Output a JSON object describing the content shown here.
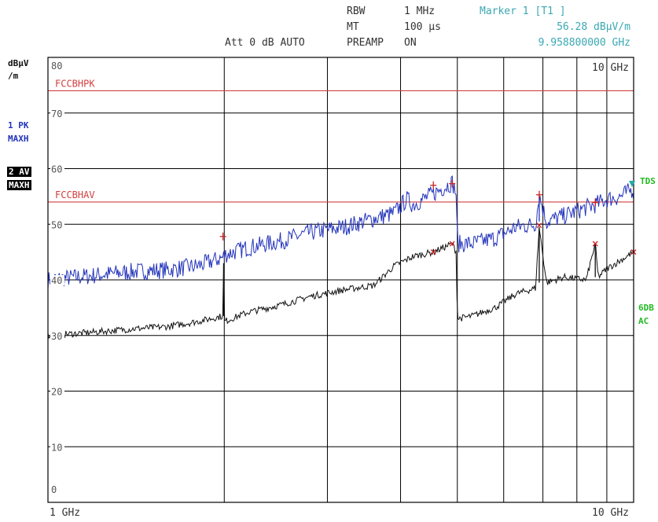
{
  "header": {
    "rbw_label": "RBW",
    "rbw_value": "1 MHz",
    "mt_label": "MT",
    "mt_value": "100 µs",
    "att_label": "Att  0 dB AUTO",
    "preamp_label": "PREAMP",
    "preamp_value": "ON",
    "marker_title": "Marker 1 [T1 ]",
    "marker_level": "56.28 dBµV/m",
    "marker_freq": "9.958800000 GHz"
  },
  "left_panel": {
    "unit_line1": "dBµV",
    "unit_line2": "/m",
    "trace1_line1": "1 PK",
    "trace1_line2": "MAXH",
    "trace2_line1": "2 AV",
    "trace2_line2": "MAXH"
  },
  "right_panel": {
    "tds_label": "TDS",
    "sixdb_label": "6DB",
    "ac_label": "AC"
  },
  "colors": {
    "pk_trace": "#2233bb",
    "av_trace": "#111111",
    "limit": "#d04040",
    "marker": "#cc2222",
    "grid": "#000000",
    "info_cyan": "#3aa8b3",
    "side_green": "#22bb22"
  },
  "chart_data": {
    "type": "line",
    "title": "",
    "x_scale": "log",
    "xlim": [
      1,
      10
    ],
    "x_unit": "GHz",
    "x_start_label": "1 GHz",
    "x_stop_label": "10 GHz",
    "x_top_label": "10 GHz",
    "ylim": [
      0,
      80
    ],
    "yticks": [
      "0",
      "10",
      "20",
      "30",
      "40",
      "50",
      "60",
      "70",
      "80"
    ],
    "ylabel": "dBµV/m",
    "limit_lines": [
      {
        "name": "FCCBHPK",
        "value": 74
      },
      {
        "name": "FCCBHAV",
        "value": 54
      }
    ],
    "series": [
      {
        "name": "1 PK MAXH",
        "x": [
          1.0,
          1.2,
          1.4,
          1.6,
          1.8,
          1.99,
          2.0,
          2.2,
          2.5,
          2.8,
          3.2,
          3.6,
          3.9,
          4.1,
          4.2,
          4.55,
          4.9,
          4.98,
          5.0,
          5.3,
          5.8,
          6.3,
          6.8,
          6.9,
          7.1,
          7.6,
          8.3,
          8.6,
          9.0,
          9.5,
          9.9588,
          10.0
        ],
        "values": [
          40.0,
          40.8,
          41.5,
          41.8,
          42.5,
          44.0,
          44.5,
          45.8,
          47.0,
          48.5,
          49.5,
          51.0,
          52.0,
          54.5,
          53.5,
          55.5,
          57.5,
          55.5,
          46.5,
          46.5,
          47.5,
          49.5,
          50.0,
          55.2,
          50.5,
          51.5,
          53.0,
          53.5,
          54.5,
          55.0,
          56.28,
          56.0
        ]
      },
      {
        "name": "2 AV MAXH",
        "x": [
          1.0,
          1.2,
          1.4,
          1.6,
          1.8,
          1.99,
          1.995,
          2.0,
          2.2,
          2.5,
          2.8,
          3.2,
          3.6,
          3.9,
          4.2,
          4.55,
          4.9,
          4.98,
          5.0,
          5.3,
          5.8,
          6.3,
          6.8,
          6.9,
          7.1,
          7.6,
          8.3,
          8.6,
          8.7,
          9.0,
          9.5,
          10.0
        ],
        "values": [
          30.0,
          30.6,
          31.2,
          31.6,
          32.5,
          33.5,
          43.0,
          32.5,
          34.2,
          35.5,
          37.0,
          38.2,
          39.0,
          42.5,
          44.2,
          45.0,
          46.5,
          45.0,
          33.0,
          33.5,
          35.0,
          37.5,
          38.5,
          49.5,
          39.5,
          40.5,
          40.0,
          46.5,
          40.5,
          42.0,
          43.5,
          45.0
        ]
      }
    ],
    "markers": [
      {
        "trace": "PK",
        "x": 1.99,
        "value": 47.8
      },
      {
        "trace": "PK",
        "x": 4.55,
        "value": 57.0
      },
      {
        "trace": "PK",
        "x": 4.9,
        "value": 57.3
      },
      {
        "trace": "PK",
        "x": 6.9,
        "value": 55.3
      },
      {
        "trace": "PK",
        "x": 8.6,
        "value": 53.9
      },
      {
        "trace": "AV",
        "x": 4.55,
        "value": 45.0
      },
      {
        "trace": "AV",
        "x": 4.9,
        "value": 46.5
      },
      {
        "trace": "AV",
        "x": 6.9,
        "value": 49.8
      },
      {
        "trace": "AV",
        "x": 8.6,
        "value": 46.5
      },
      {
        "trace": "AV",
        "x": 10.0,
        "value": 45.0
      }
    ]
  }
}
